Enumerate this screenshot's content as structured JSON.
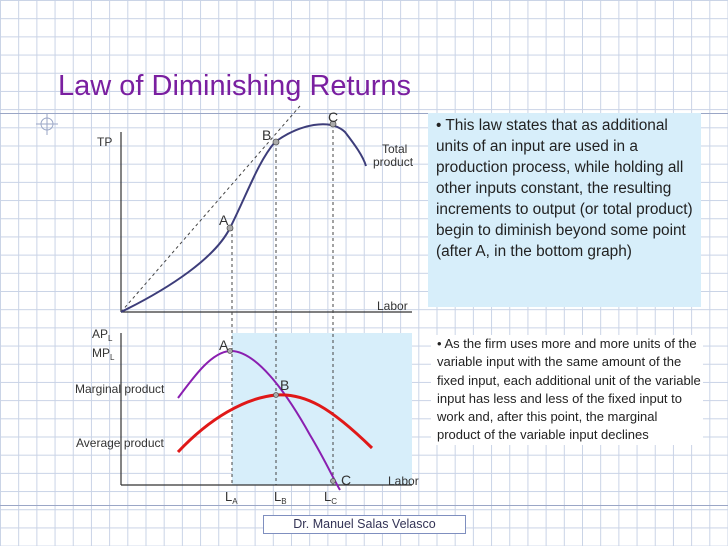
{
  "slide": {
    "title": "Law of Diminishing Returns",
    "footer": "Dr. Manuel Salas Velasco"
  },
  "top_graph": {
    "y_label": "TP",
    "x_label": "Labor",
    "curve_label_line1": "Total",
    "curve_label_line2": "product",
    "points": [
      "A",
      "B",
      "C"
    ]
  },
  "bottom_graph": {
    "y_label_1": "AP",
    "y_label_1_sub": "L",
    "y_label_2": "MP",
    "y_label_2_sub": "L",
    "x_label": "Labor",
    "marginal_label": "Marginal product",
    "average_label": "Average product",
    "points": [
      "A",
      "B",
      "C"
    ],
    "ticks": [
      {
        "main": "L",
        "sub": "A"
      },
      {
        "main": "L",
        "sub": "B"
      },
      {
        "main": "L",
        "sub": "C"
      }
    ]
  },
  "notes": {
    "note1": "• This law states that as additional units of an input are used in a production process, while holding all other inputs constant, the resulting increments to output (or total product) begin to diminish beyond some point (after A, in the bottom graph)",
    "note2": "• As the firm uses more and more units of the variable input with the same amount of the fixed input, each additional unit of the variable input has less and less of the fixed input to work and, after this point, the marginal product of the variable input declines"
  },
  "colors": {
    "title": "#7a1fa0",
    "total_product_curve": "#3d3d7a",
    "marginal_product_curve": "#8a1fb0",
    "average_product_curve": "#e01818",
    "shaded_region": "#d7eefa"
  }
}
